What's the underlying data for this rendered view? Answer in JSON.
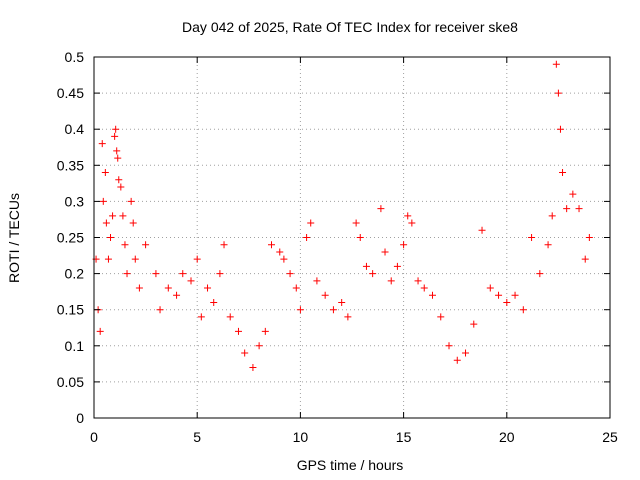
{
  "chart_data": {
    "type": "scatter",
    "title": "Day 042 of 2025, Rate Of TEC Index for receiver ske8",
    "xlabel": "GPS time / hours",
    "ylabel": "ROTI / TECUs",
    "xlim": [
      0,
      25
    ],
    "ylim": [
      0,
      0.5
    ],
    "x_ticks": [
      0,
      5,
      10,
      15,
      20,
      25
    ],
    "y_ticks": [
      0,
      0.05,
      0.1,
      0.15,
      0.2,
      0.25,
      0.3,
      0.35,
      0.4,
      0.45,
      0.5
    ],
    "grid": true,
    "marker": "+",
    "colors": {
      "points": "#ff0000"
    },
    "series": [
      {
        "values": [
          [
            0.1,
            0.22
          ],
          [
            0.2,
            0.15
          ],
          [
            0.3,
            0.12
          ],
          [
            0.4,
            0.38
          ],
          [
            0.45,
            0.3
          ],
          [
            0.55,
            0.34
          ],
          [
            0.6,
            0.27
          ],
          [
            0.7,
            0.22
          ],
          [
            0.8,
            0.25
          ],
          [
            0.9,
            0.28
          ],
          [
            1.0,
            0.39
          ],
          [
            1.05,
            0.4
          ],
          [
            1.1,
            0.37
          ],
          [
            1.15,
            0.36
          ],
          [
            1.2,
            0.33
          ],
          [
            1.3,
            0.32
          ],
          [
            1.4,
            0.28
          ],
          [
            1.5,
            0.24
          ],
          [
            1.6,
            0.2
          ],
          [
            1.8,
            0.3
          ],
          [
            1.9,
            0.27
          ],
          [
            2.0,
            0.22
          ],
          [
            2.2,
            0.18
          ],
          [
            2.5,
            0.24
          ],
          [
            3.0,
            0.2
          ],
          [
            3.2,
            0.15
          ],
          [
            3.6,
            0.18
          ],
          [
            4.0,
            0.17
          ],
          [
            4.3,
            0.2
          ],
          [
            4.7,
            0.19
          ],
          [
            5.0,
            0.22
          ],
          [
            5.2,
            0.14
          ],
          [
            5.5,
            0.18
          ],
          [
            5.8,
            0.16
          ],
          [
            6.1,
            0.2
          ],
          [
            6.3,
            0.24
          ],
          [
            6.6,
            0.14
          ],
          [
            7.0,
            0.12
          ],
          [
            7.3,
            0.09
          ],
          [
            7.7,
            0.07
          ],
          [
            8.0,
            0.1
          ],
          [
            8.3,
            0.12
          ],
          [
            8.6,
            0.24
          ],
          [
            9.0,
            0.23
          ],
          [
            9.2,
            0.22
          ],
          [
            9.5,
            0.2
          ],
          [
            9.8,
            0.18
          ],
          [
            10.0,
            0.15
          ],
          [
            10.3,
            0.25
          ],
          [
            10.5,
            0.27
          ],
          [
            10.8,
            0.19
          ],
          [
            11.2,
            0.17
          ],
          [
            11.6,
            0.15
          ],
          [
            12.0,
            0.16
          ],
          [
            12.3,
            0.14
          ],
          [
            12.7,
            0.27
          ],
          [
            12.9,
            0.25
          ],
          [
            13.2,
            0.21
          ],
          [
            13.5,
            0.2
          ],
          [
            13.9,
            0.29
          ],
          [
            14.1,
            0.23
          ],
          [
            14.4,
            0.19
          ],
          [
            14.7,
            0.21
          ],
          [
            15.0,
            0.24
          ],
          [
            15.2,
            0.28
          ],
          [
            15.4,
            0.27
          ],
          [
            15.7,
            0.19
          ],
          [
            16.0,
            0.18
          ],
          [
            16.4,
            0.17
          ],
          [
            16.8,
            0.14
          ],
          [
            17.2,
            0.1
          ],
          [
            17.6,
            0.08
          ],
          [
            18.0,
            0.09
          ],
          [
            18.4,
            0.13
          ],
          [
            18.8,
            0.26
          ],
          [
            19.2,
            0.18
          ],
          [
            19.6,
            0.17
          ],
          [
            20.0,
            0.16
          ],
          [
            20.4,
            0.17
          ],
          [
            20.8,
            0.15
          ],
          [
            21.2,
            0.25
          ],
          [
            21.6,
            0.2
          ],
          [
            22.0,
            0.24
          ],
          [
            22.2,
            0.28
          ],
          [
            22.4,
            0.49
          ],
          [
            22.5,
            0.45
          ],
          [
            22.6,
            0.4
          ],
          [
            22.7,
            0.34
          ],
          [
            22.9,
            0.29
          ],
          [
            23.2,
            0.31
          ],
          [
            23.5,
            0.29
          ],
          [
            23.8,
            0.22
          ],
          [
            24.0,
            0.25
          ]
        ]
      }
    ]
  }
}
